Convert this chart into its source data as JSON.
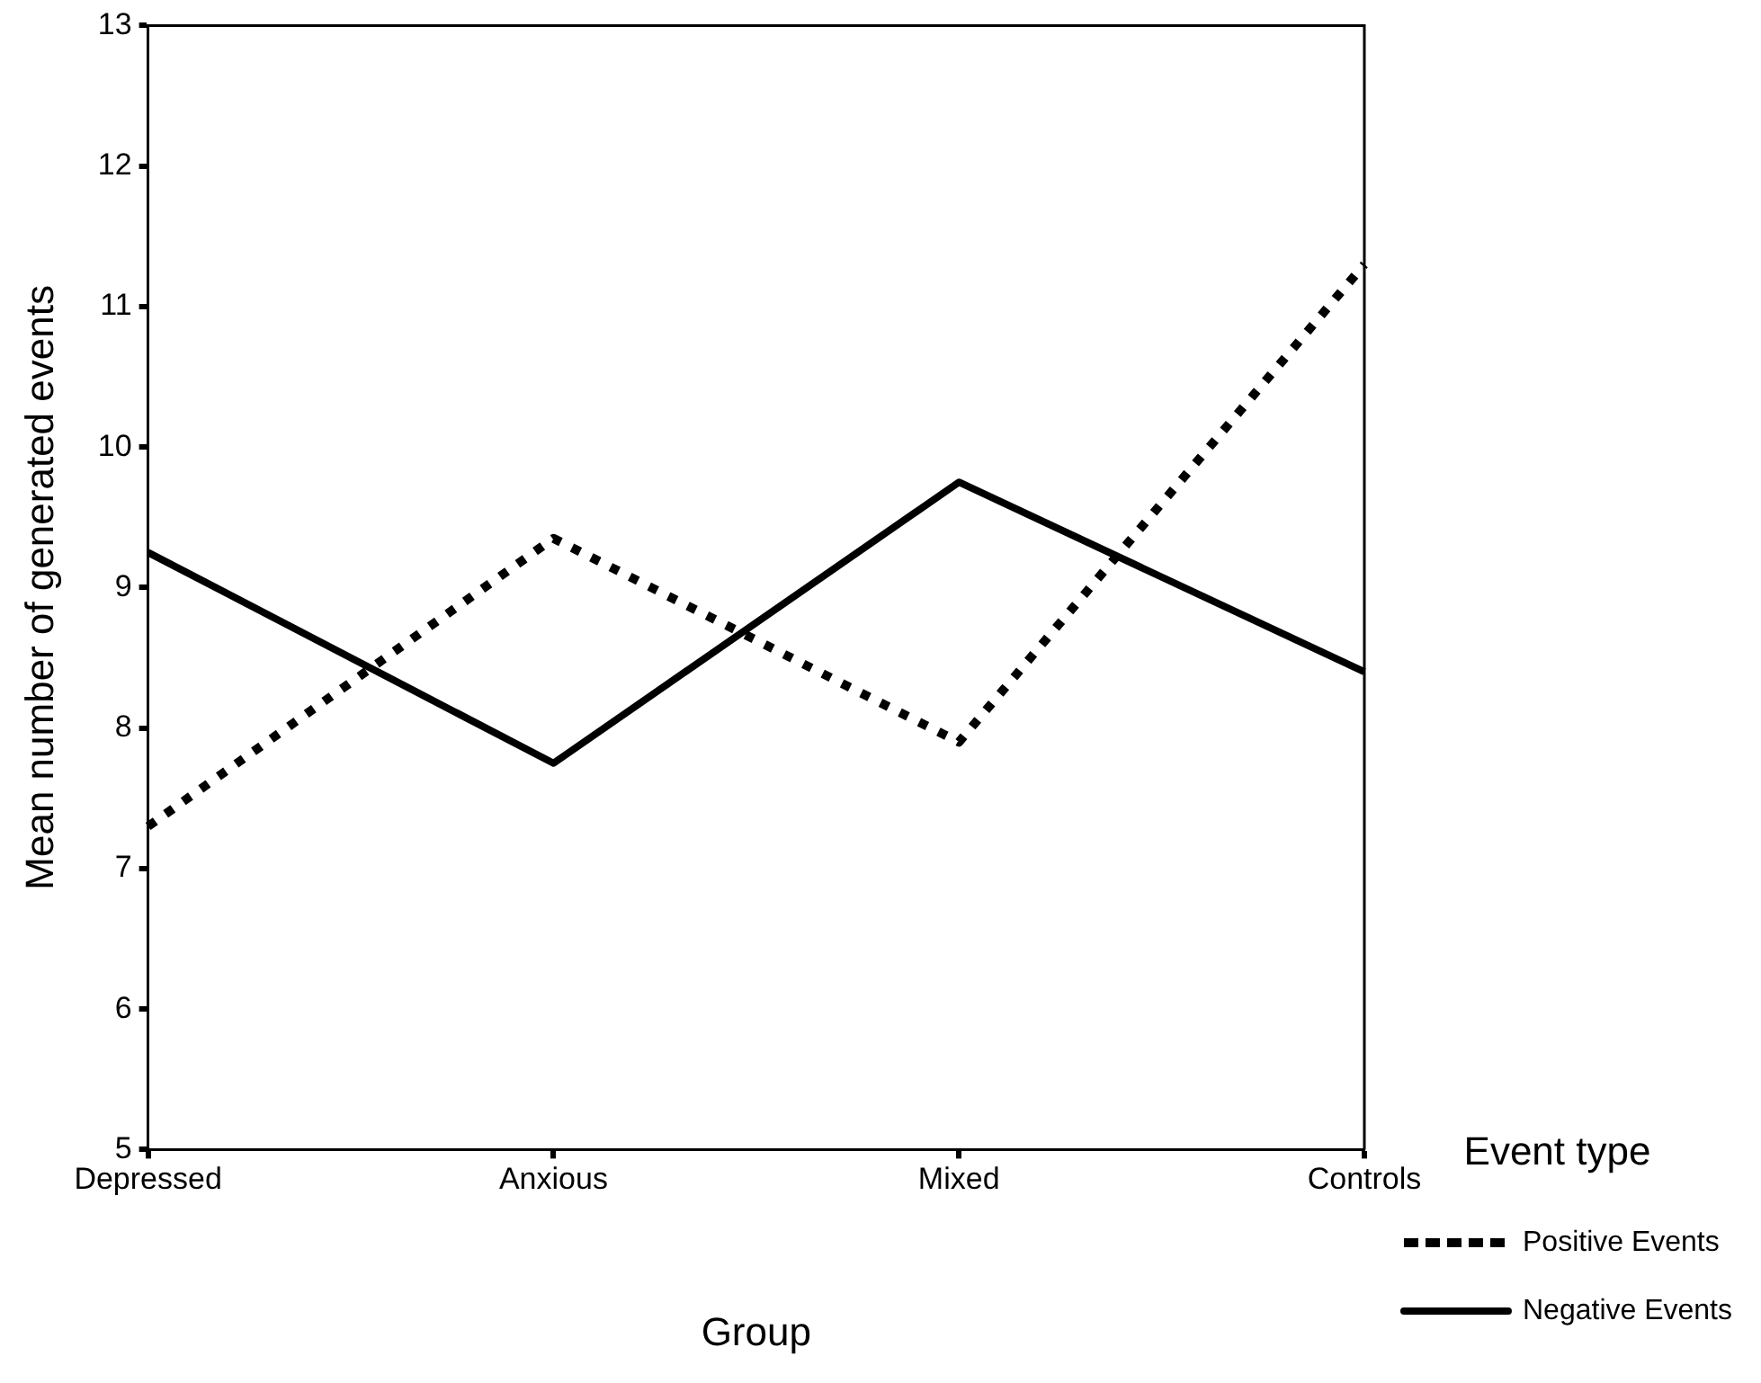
{
  "chart_data": {
    "type": "line",
    "xlabel": "Group",
    "ylabel": "Mean number of generated events",
    "legend_title": "Event type",
    "categories": [
      "Depressed",
      "Anxious",
      "Mixed",
      "Controls"
    ],
    "series": [
      {
        "name": "Positive Events",
        "color": "#000000",
        "line_style": "dotted",
        "values": [
          7.3,
          9.35,
          7.9,
          11.3
        ]
      },
      {
        "name": "Negative Events",
        "color": "#000000",
        "line_style": "solid",
        "values": [
          9.25,
          7.75,
          9.75,
          8.4
        ]
      }
    ],
    "ylim": [
      5,
      13
    ],
    "yticks": [
      5,
      6,
      7,
      8,
      9,
      10,
      11,
      12,
      13
    ],
    "grid": false,
    "legend": "bottom right",
    "marker": "none"
  }
}
